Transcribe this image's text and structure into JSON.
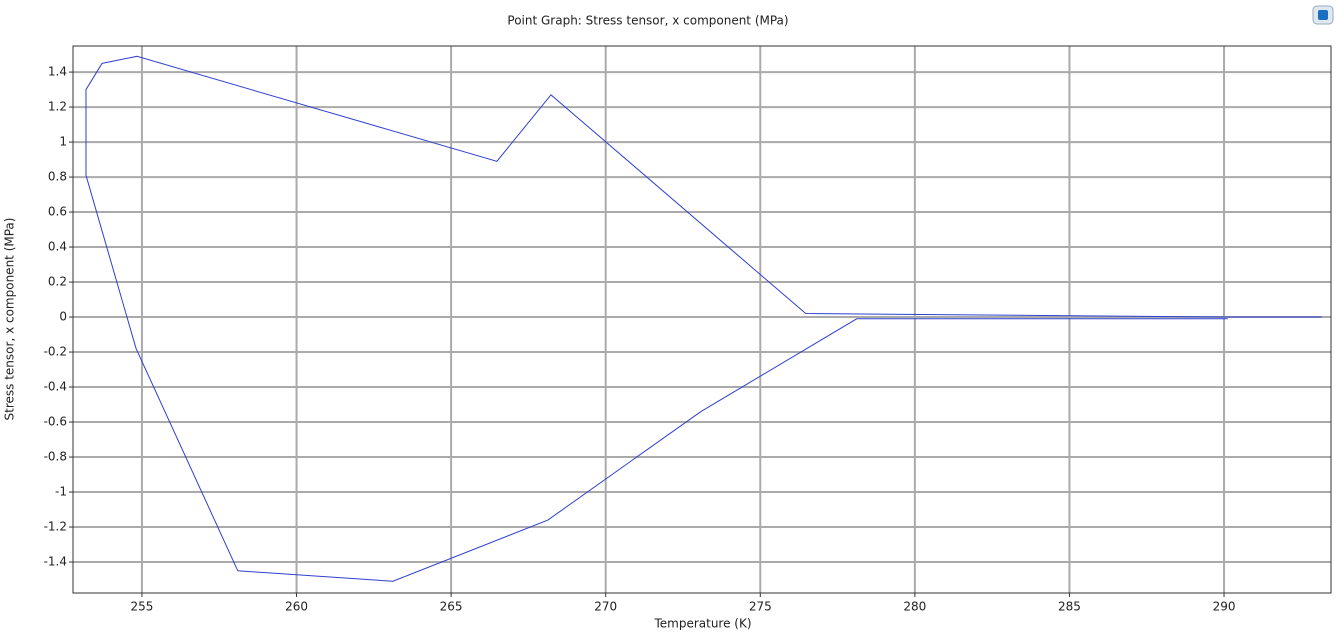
{
  "chart_data": {
    "type": "line",
    "title": "Point Graph: Stress tensor, x component (MPa)",
    "x_label": "Temperature (K)",
    "y_label": "Stress tensor, x component (MPa)",
    "series": [
      {
        "color": "#2f3fcf",
        "x": [
          293.16,
          290.12,
          276.47,
          268.23,
          266.48,
          254.84,
          253.71,
          253.19,
          253.19,
          254.81,
          258.1,
          263.12,
          268.13,
          273.08,
          278.12,
          290.12
        ],
        "values": [
          0,
          0,
          0.02,
          1.27,
          0.89,
          1.49,
          1.45,
          1.3,
          0.81,
          -0.18,
          -1.45,
          -1.51,
          -1.16,
          -0.54,
          -0.01,
          -0.01
        ]
      }
    ],
    "xlim": [
      252.77,
      293.46
    ],
    "ylim": [
      -1.577,
      1.549
    ],
    "xticks": [
      255,
      260,
      265,
      270,
      275,
      280,
      285,
      290
    ],
    "yticks": [
      -1.4,
      -1.2,
      -1,
      -0.8,
      -0.6,
      -0.4,
      -0.2,
      0,
      0.2,
      0.4,
      0.6,
      0.8,
      1,
      1.2,
      1.4
    ],
    "grid": true
  }
}
